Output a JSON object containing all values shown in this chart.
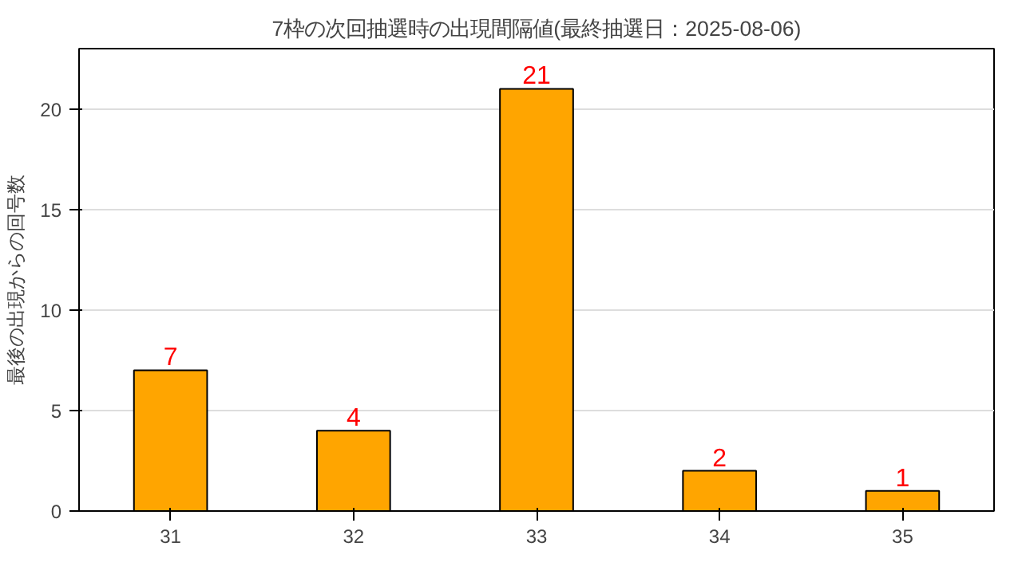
{
  "chart_data": {
    "type": "bar",
    "title": "7枠の次回抽選時の出現間隔値(最終抽選日：2025-08-06)",
    "ylabel": "最後の出現からの回号数",
    "categories": [
      "31",
      "32",
      "33",
      "34",
      "35"
    ],
    "values": [
      7,
      4,
      21,
      2,
      1
    ],
    "color": "#ffa500",
    "ylim": [
      0,
      23
    ],
    "yticks": [
      0,
      5,
      10,
      15,
      20
    ],
    "grid": "y",
    "data_labels": true
  }
}
